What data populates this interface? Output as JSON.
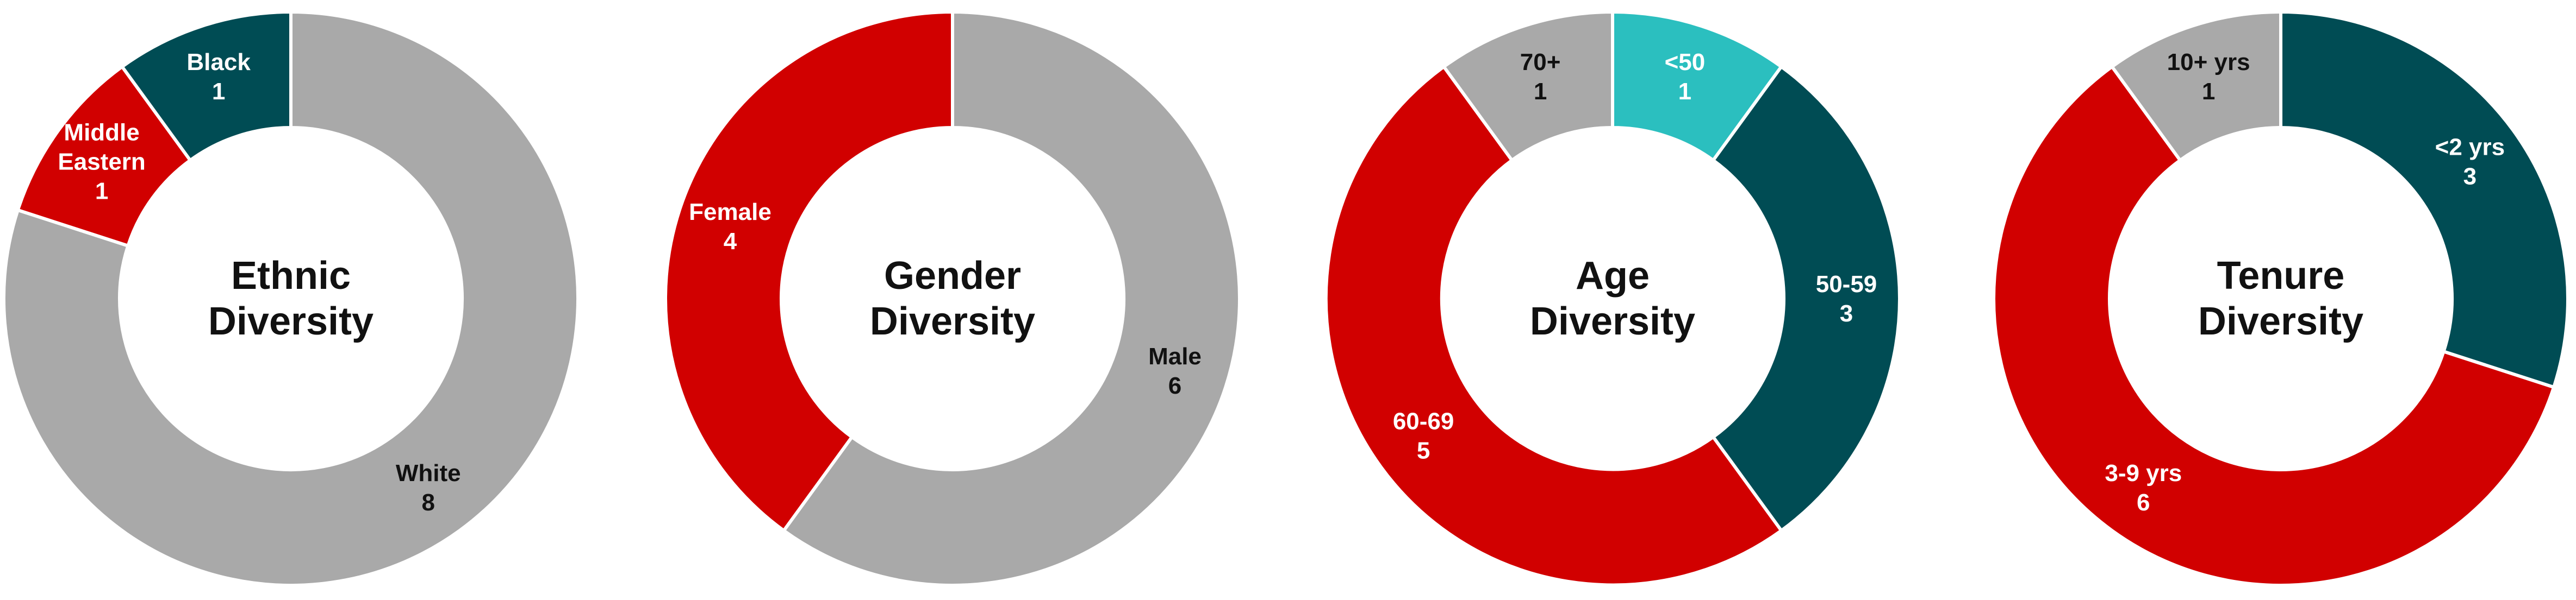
{
  "chart_data": [
    {
      "type": "pie",
      "title": "Ethnic Diversity",
      "title_lines": [
        "Ethnic",
        "Diversity"
      ],
      "slices": [
        {
          "name": "White",
          "label_lines": [
            "White"
          ],
          "value": 8,
          "color": "#A9A9A9",
          "label_color": "#111111"
        },
        {
          "name": "Middle Eastern",
          "label_lines": [
            "Middle",
            "Eastern"
          ],
          "value": 1,
          "color": "#D10000",
          "label_color": "#FFFFFF"
        },
        {
          "name": "Black",
          "label_lines": [
            "Black"
          ],
          "value": 1,
          "color": "#004C54",
          "label_color": "#FFFFFF"
        }
      ]
    },
    {
      "type": "pie",
      "title": "Gender Diversity",
      "title_lines": [
        "Gender",
        "Diversity"
      ],
      "slices": [
        {
          "name": "Male",
          "label_lines": [
            "Male"
          ],
          "value": 6,
          "color": "#A9A9A9",
          "label_color": "#111111"
        },
        {
          "name": "Female",
          "label_lines": [
            "Female"
          ],
          "value": 4,
          "color": "#D10000",
          "label_color": "#FFFFFF"
        }
      ]
    },
    {
      "type": "pie",
      "title": "Age Diversity",
      "title_lines": [
        "Age",
        "Diversity"
      ],
      "slices": [
        {
          "name": "<50",
          "label_lines": [
            "<50"
          ],
          "value": 1,
          "color": "#2BBFBF",
          "label_color": "#FFFFFF"
        },
        {
          "name": "50-59",
          "label_lines": [
            "50-59"
          ],
          "value": 3,
          "color": "#004C54",
          "label_color": "#FFFFFF"
        },
        {
          "name": "60-69",
          "label_lines": [
            "60-69"
          ],
          "value": 5,
          "color": "#D10000",
          "label_color": "#FFFFFF"
        },
        {
          "name": "70+",
          "label_lines": [
            "70+"
          ],
          "value": 1,
          "color": "#A9A9A9",
          "label_color": "#111111"
        }
      ]
    },
    {
      "type": "pie",
      "title": "Tenure Diversity",
      "title_lines": [
        "Tenure",
        "Diversity"
      ],
      "slices": [
        {
          "name": "<2 yrs",
          "label_lines": [
            "<2 yrs"
          ],
          "value": 3,
          "color": "#004C54",
          "label_color": "#FFFFFF"
        },
        {
          "name": "3-9 yrs",
          "label_lines": [
            "3-9 yrs"
          ],
          "value": 6,
          "color": "#D10000",
          "label_color": "#FFFFFF"
        },
        {
          "name": "10+ yrs",
          "label_lines": [
            "10+ yrs"
          ],
          "value": 1,
          "color": "#A9A9A9",
          "label_color": "#111111"
        }
      ]
    }
  ]
}
